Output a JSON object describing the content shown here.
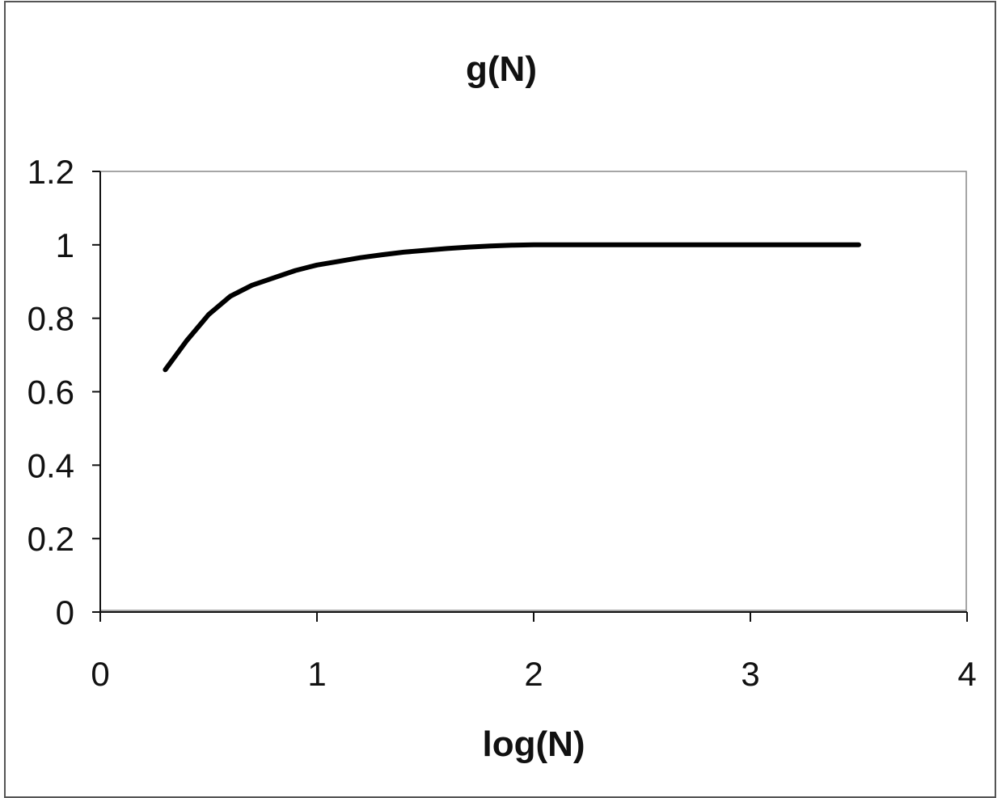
{
  "chart_data": {
    "type": "line",
    "title": "g(N)",
    "xlabel": "log(N)",
    "ylabel": "",
    "xlim": [
      0,
      4
    ],
    "ylim": [
      0,
      1.2
    ],
    "x_ticks": [
      0,
      1,
      2,
      3,
      4
    ],
    "x_tick_labels": [
      "0",
      "1",
      "2",
      "3",
      "4"
    ],
    "y_ticks": [
      0,
      0.2,
      0.4,
      0.6,
      0.8,
      1,
      1.2
    ],
    "y_tick_labels": [
      "0",
      "0.2",
      "0.4",
      "0.6",
      "0.8",
      "1",
      "1.2"
    ],
    "grid": false,
    "legend": "none",
    "series": [
      {
        "color": "#000000",
        "x": [
          0.3,
          0.4,
          0.5,
          0.6,
          0.7,
          0.8,
          0.9,
          1.0,
          1.1,
          1.2,
          1.3,
          1.4,
          1.5,
          1.6,
          1.7,
          1.8,
          1.9,
          2.0,
          2.5,
          3.0,
          3.5
        ],
        "y": [
          0.66,
          0.74,
          0.81,
          0.86,
          0.89,
          0.91,
          0.93,
          0.945,
          0.955,
          0.965,
          0.973,
          0.98,
          0.985,
          0.99,
          0.994,
          0.997,
          0.999,
          1.0,
          1.0,
          1.0,
          1.0
        ]
      }
    ]
  }
}
